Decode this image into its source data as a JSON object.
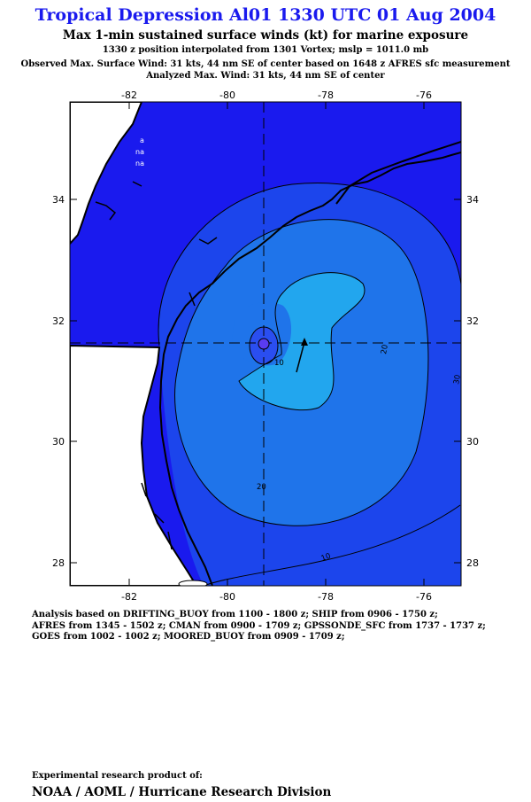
{
  "header": {
    "title": "Tropical Depression Al01 1330 UTC 01 Aug 2004",
    "subtitle": "Max 1-min sustained surface winds (kt) for marine exposure",
    "position_note": "1330 z position interpolated from 1301 Vortex; mslp = 1011.0 mb",
    "observed_max": "Observed Max. Surface Wind: 31 kts, 44 nm SE of center based on 1648 z AFRES sfc measurement",
    "analyzed_max": "Analyzed Max. Wind: 31 kts, 44 nm SE of center"
  },
  "map": {
    "lon_ticks": [
      "-82",
      "-80",
      "-78",
      "-76"
    ],
    "lat_ticks": [
      "34",
      "32",
      "30",
      "28"
    ],
    "contour_labels": [
      "10",
      "20",
      "20",
      "30",
      "10"
    ],
    "no_data_labels": [
      "a",
      "na",
      "na"
    ],
    "center": {
      "lon": -79.0,
      "lat": 31.6
    },
    "colors": {
      "ocean": "#1a1aee",
      "land": "#ffffff",
      "ring_10_20": "#1c45ec",
      "ring_20_30": "#1f74ea",
      "ring_30_plus": "#22a6ee",
      "core": "#2a4ef0"
    }
  },
  "analysis": {
    "lines": [
      "Analysis based on  DRIFTING_BUOY from 1100 - 1800 z;  SHIP from 0906 - 1750 z;",
      "AFRES from 1345 - 1502 z;  CMAN from 0900 - 1709 z;  GPSSONDE_SFC from 1737 - 1737 z;",
      "GOES from 1002 - 1002 z;  MOORED_BUOY from 0909 - 1709 z;"
    ]
  },
  "footer": {
    "product": "Experimental research product of:",
    "org": "NOAA / AOML / Hurricane Research Division"
  }
}
